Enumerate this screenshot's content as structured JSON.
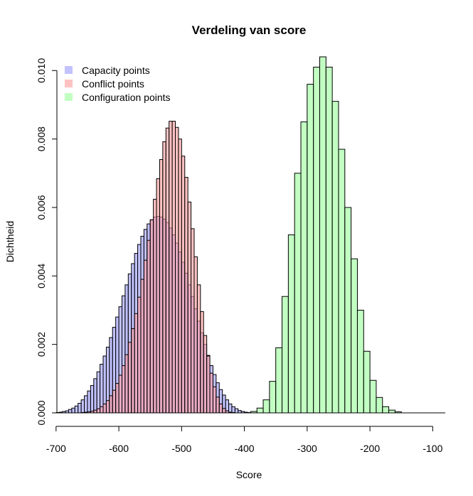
{
  "chart_data": {
    "type": "histogram",
    "title": "Verdeling van score",
    "xlabel": "Score",
    "ylabel": "Dichtheid",
    "xlim": [
      -710,
      -80
    ],
    "ylim": [
      0,
      0.0104
    ],
    "x_ticks": [
      -700,
      -600,
      -500,
      -400,
      -300,
      -200,
      -100
    ],
    "x_tick_labels": [
      "-700",
      "-600",
      "-500",
      "-400",
      "-300",
      "-200",
      "-100"
    ],
    "y_ticks": [
      0.0,
      0.002,
      0.004,
      0.006,
      0.008,
      0.01
    ],
    "y_tick_labels": [
      "0.000",
      "0.002",
      "0.004",
      "0.006",
      "0.008",
      "0.010"
    ],
    "legend_position": "top-left",
    "grid": false,
    "series": [
      {
        "name": "Capacity points",
        "color": "#9999ff",
        "bin_width": 5,
        "bin_start": -700,
        "density": [
          1e-05,
          2e-05,
          4e-05,
          6e-05,
          0.0001,
          0.00014,
          0.0002,
          0.00028,
          0.00038,
          0.0005,
          0.00064,
          0.0008,
          0.001,
          0.0012,
          0.00142,
          0.00166,
          0.00192,
          0.0022,
          0.0025,
          0.0028,
          0.0031,
          0.00342,
          0.00374,
          0.00406,
          0.00436,
          0.00466,
          0.00492,
          0.00516,
          0.00536,
          0.00552,
          0.00564,
          0.00572,
          0.00574,
          0.00572,
          0.00566,
          0.00556,
          0.0054,
          0.0052,
          0.00496,
          0.0047,
          0.0044,
          0.00408,
          0.00374,
          0.0034,
          0.00304,
          0.00268,
          0.00234,
          0.002,
          0.00168,
          0.00138,
          0.00112,
          0.00088,
          0.00068,
          0.00052,
          0.00038,
          0.00026,
          0.00018,
          0.00012,
          7e-05,
          4e-05,
          2e-05,
          1e-05
        ]
      },
      {
        "name": "Conflict points",
        "color": "#ff9999",
        "bin_width": 5,
        "bin_start": -660,
        "density": [
          1e-05,
          2e-05,
          3e-05,
          5e-05,
          8e-05,
          0.00012,
          0.00018,
          0.00026,
          0.00036,
          0.0005,
          0.00066,
          0.00086,
          0.0011,
          0.00138,
          0.0017,
          0.00206,
          0.00246,
          0.0029,
          0.00338,
          0.0039,
          0.00446,
          0.00504,
          0.00564,
          0.00624,
          0.00684,
          0.0074,
          0.00792,
          0.00832,
          0.00852,
          0.00852,
          0.00834,
          0.008,
          0.0075,
          0.00688,
          0.00616,
          0.00538,
          0.00456,
          0.00374,
          0.00296,
          0.00226,
          0.00166,
          0.00116,
          0.00076,
          0.00046,
          0.00026,
          0.00013,
          6e-05,
          2e-05,
          1e-05
        ]
      },
      {
        "name": "Configuration points",
        "color": "#99ff99",
        "bin_width": 10,
        "bin_start": -390,
        "density": [
          4e-05,
          0.00014,
          0.00038,
          0.00092,
          0.0019,
          0.0034,
          0.0052,
          0.007,
          0.0085,
          0.0096,
          0.0101,
          0.0104,
          0.0101,
          0.0091,
          0.0077,
          0.006,
          0.0045,
          0.003,
          0.0018,
          0.00095,
          0.00045,
          0.00018,
          8e-05,
          3e-05
        ]
      }
    ]
  }
}
